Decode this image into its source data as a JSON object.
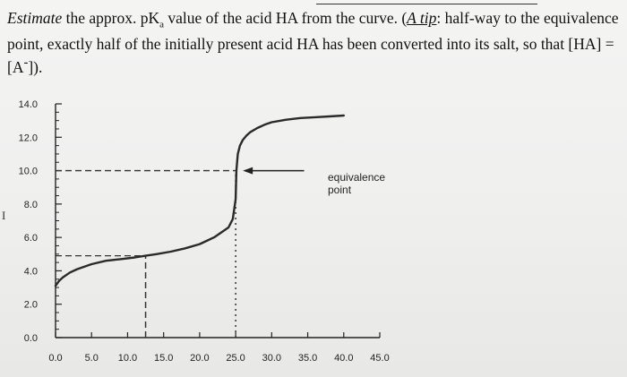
{
  "question": {
    "part1": "Estimate",
    "part2": " the approx. pK",
    "sub": "a",
    "part3": " value of the acid HA from the curve.  (",
    "tip": "A tip",
    "part4": ": half-way to the equivalence point, exactly half of the initially present acid HA has been converted into its salt, so that [HA] = [A",
    "sup": "-",
    "part5": "])."
  },
  "side_mark": "I",
  "annotation": {
    "line1": "equivalence",
    "line2": "point"
  },
  "chart_data": {
    "type": "line",
    "title": "",
    "xlabel": "",
    "ylabel": "",
    "xlim": [
      0,
      45
    ],
    "ylim": [
      0,
      14
    ],
    "x_ticks": [
      0,
      5,
      10,
      15,
      20,
      25,
      30,
      35,
      40,
      45
    ],
    "x_tick_labels": [
      "0.0",
      "5.0",
      "10.0",
      "15.0",
      "20.0",
      "25.0",
      "30.0",
      "35.0",
      "40.0",
      "45.0"
    ],
    "y_ticks": [
      0,
      2,
      4,
      6,
      8,
      10,
      12,
      14
    ],
    "y_tick_labels": [
      "0.0",
      "2.0",
      "4.0",
      "6.0",
      "8.0",
      "10.0",
      "12.0",
      "14.0"
    ],
    "series": [
      {
        "color": "#2a2a2a",
        "x": [
          0,
          0.5,
          1,
          2,
          3,
          5,
          7,
          9,
          11,
          12.5,
          14,
          16,
          18,
          20,
          21,
          22,
          23,
          24,
          24.6,
          25,
          25.1,
          25.3,
          25.6,
          26,
          26.5,
          27,
          28,
          29,
          30,
          32,
          34,
          36,
          38,
          40
        ],
        "y": [
          3.1,
          3.4,
          3.6,
          3.9,
          4.1,
          4.4,
          4.6,
          4.7,
          4.8,
          4.9,
          5.0,
          5.15,
          5.35,
          5.6,
          5.8,
          6.0,
          6.3,
          6.6,
          7.1,
          8.3,
          10.0,
          11.0,
          11.5,
          11.85,
          12.1,
          12.3,
          12.55,
          12.75,
          12.9,
          13.05,
          13.15,
          13.2,
          13.25,
          13.3
        ]
      }
    ],
    "reference_lines": [
      {
        "y": 10.0,
        "from_x": 0,
        "to_x": 25,
        "style": "dashed"
      },
      {
        "x": 25.0,
        "from_y": 0,
        "to_y": 10.0,
        "style": "dotted"
      },
      {
        "y": 4.9,
        "from_x": 0,
        "to_x": 12.5,
        "style": "dashed"
      },
      {
        "x": 12.5,
        "from_y": 0,
        "to_y": 4.9,
        "style": "dashed"
      }
    ],
    "arrow": {
      "from_x": 34.5,
      "to_x": 26,
      "y": 10.0
    },
    "grid": false,
    "legend": "none"
  }
}
